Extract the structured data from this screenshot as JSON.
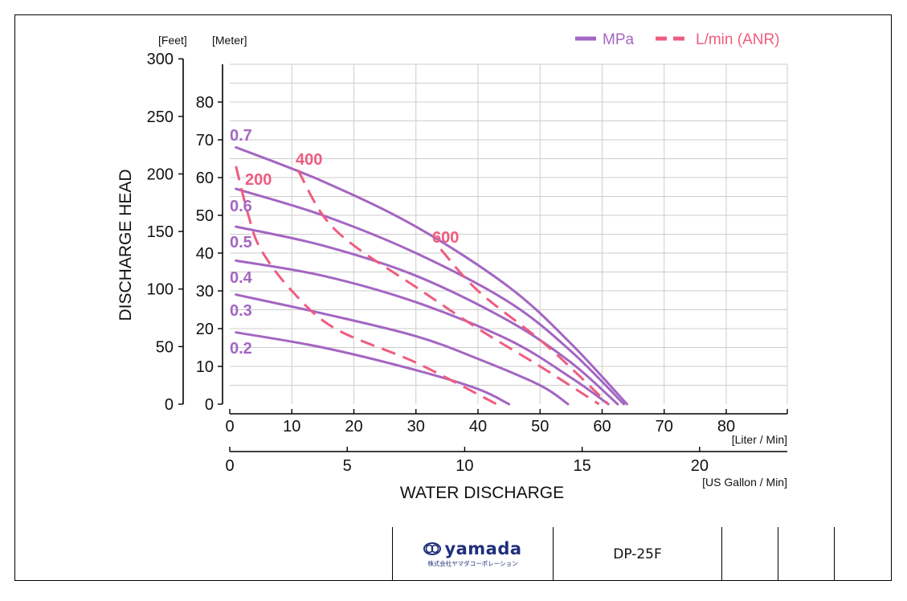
{
  "chart_data": {
    "type": "line",
    "title": "",
    "xlabel": "WATER DISCHARGE",
    "ylabel": "DISCHARGE HEAD",
    "x_unit_label": "[Liter / Min]",
    "x2_unit_label": "[US Gallon / Min]",
    "y_left_unit_label": "[Feet]",
    "y_right_unit_label": "[Meter]",
    "xlim": [
      0,
      90
    ],
    "ylim": [
      0,
      90
    ],
    "x_ticks": [
      0,
      10,
      20,
      30,
      40,
      50,
      60,
      70,
      80
    ],
    "x2_ticks": [
      0,
      5,
      10,
      15,
      20
    ],
    "y_meter_ticks": [
      0,
      10,
      20,
      30,
      40,
      50,
      60,
      70,
      80
    ],
    "y_feet_ticks": [
      0,
      50,
      100,
      150,
      200,
      250,
      300
    ],
    "grid": true,
    "legend": {
      "placement": "top-right",
      "entries": [
        {
          "label": "MPa",
          "style": "solid",
          "color": "#a466c2"
        },
        {
          "label": "L/min (ANR)",
          "style": "dashed",
          "color": "#ee5d80"
        }
      ]
    },
    "pressure_series": [
      {
        "label": "0.7",
        "x": [
          1,
          15,
          30,
          45,
          55,
          64
        ],
        "y": [
          68,
          59,
          47,
          31,
          16,
          0
        ]
      },
      {
        "label": "0.6",
        "x": [
          1,
          15,
          30,
          45,
          55,
          63.5
        ],
        "y": [
          57,
          50,
          40,
          27,
          14,
          0
        ]
      },
      {
        "label": "0.5",
        "x": [
          1,
          15,
          30,
          45,
          55,
          62.5
        ],
        "y": [
          47,
          42,
          34,
          22,
          11,
          0
        ]
      },
      {
        "label": "0.4",
        "x": [
          1,
          15,
          30,
          45,
          55,
          61
        ],
        "y": [
          38,
          34,
          27,
          17,
          7,
          0
        ]
      },
      {
        "label": "0.3",
        "x": [
          1,
          15,
          30,
          40,
          50,
          54.5
        ],
        "y": [
          29,
          24,
          18,
          12,
          5,
          0
        ]
      },
      {
        "label": "0.2",
        "x": [
          1,
          15,
          30,
          40,
          45
        ],
        "y": [
          19,
          15,
          9,
          4,
          0
        ]
      }
    ],
    "air_series": [
      {
        "label": "200",
        "x": [
          1,
          3,
          5,
          10,
          17,
          30,
          43
        ],
        "y": [
          63,
          50,
          41,
          30,
          20,
          11,
          0
        ]
      },
      {
        "label": "400",
        "x": [
          11,
          15,
          20,
          30,
          40,
          50,
          59.5
        ],
        "y": [
          62,
          50,
          42,
          31,
          20,
          10,
          0
        ]
      },
      {
        "label": "600",
        "x": [
          34,
          40,
          50,
          56,
          61
        ],
        "y": [
          41,
          30,
          17,
          8,
          0
        ]
      }
    ]
  },
  "title_block": {
    "company_logo_text": "yamada",
    "company_subtitle": "株式会社ヤマダコーポレーション",
    "model": "DP-25F"
  },
  "colors": {
    "pressure_curve": "#a466c2",
    "air_curve": "#ee5d80",
    "grid": "#cccccc",
    "logo": "#1f2f7a"
  }
}
